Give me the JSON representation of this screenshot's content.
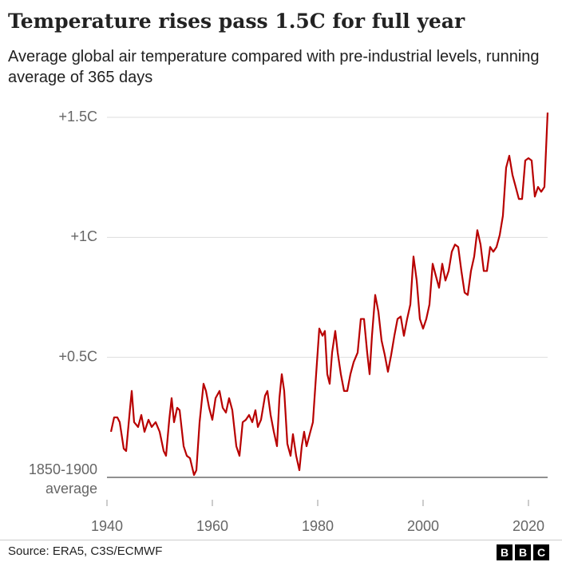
{
  "chart_data": {
    "type": "line",
    "title": "Temperature rises pass 1.5C for full year",
    "subtitle": "Average global air temperature compared with pre-industrial levels, running average of 365 days",
    "source": "Source: ERA5, C3S/ECMWF",
    "logo": [
      "B",
      "B",
      "C"
    ],
    "color": "#b80000",
    "grid": true,
    "xlim": [
      1940,
      2023.64
    ],
    "xticks": [
      1940,
      1960,
      1980,
      2000,
      2020
    ],
    "ylim": [
      0,
      1.5
    ],
    "yticks": [
      {
        "value": 0,
        "label": "1850-1900 average"
      },
      {
        "value": 0.5,
        "label": "+0.5C"
      },
      {
        "value": 1,
        "label": "+1C"
      },
      {
        "value": 1.5,
        "label": "+1.5C"
      }
    ],
    "x": [
      1940.76,
      1941.36,
      1941.97,
      1942.42,
      1943.18,
      1943.64,
      1944.39,
      1944.7,
      1945.15,
      1945.91,
      1946.52,
      1947.12,
      1947.88,
      1948.48,
      1949.24,
      1950.0,
      1950.76,
      1951.21,
      1951.82,
      1952.27,
      1952.73,
      1953.33,
      1953.79,
      1954.55,
      1955.15,
      1955.76,
      1956.52,
      1956.97,
      1957.58,
      1958.33,
      1958.79,
      1959.39,
      1960.0,
      1960.61,
      1961.36,
      1961.97,
      1962.58,
      1963.18,
      1963.79,
      1964.55,
      1965.15,
      1965.76,
      1966.36,
      1966.97,
      1967.58,
      1968.18,
      1968.64,
      1969.24,
      1970.0,
      1970.45,
      1971.06,
      1971.67,
      1972.27,
      1972.73,
      1973.18,
      1973.64,
      1974.24,
      1974.85,
      1975.3,
      1975.91,
      1976.52,
      1976.97,
      1977.42,
      1977.88,
      1978.48,
      1979.09,
      1979.7,
      1980.3,
      1980.91,
      1981.36,
      1981.82,
      1982.27,
      1982.73,
      1983.33,
      1983.79,
      1984.39,
      1985.0,
      1985.61,
      1986.21,
      1986.82,
      1987.58,
      1988.18,
      1988.79,
      1989.39,
      1989.85,
      1990.3,
      1990.91,
      1991.52,
      1992.12,
      1992.73,
      1993.33,
      1993.94,
      1994.55,
      1995.15,
      1995.76,
      1996.36,
      1996.97,
      1997.58,
      1998.18,
      1998.79,
      1999.39,
      2000.0,
      2000.61,
      2001.21,
      2001.82,
      2002.42,
      2003.03,
      2003.64,
      2004.24,
      2004.85,
      2005.45,
      2006.06,
      2006.67,
      2007.27,
      2007.88,
      2008.48,
      2009.09,
      2009.7,
      2010.3,
      2010.91,
      2011.52,
      2012.12,
      2012.73,
      2013.33,
      2013.94,
      2014.55,
      2015.15,
      2015.76,
      2016.36,
      2016.97,
      2017.58,
      2018.18,
      2018.79,
      2019.39,
      2020.0,
      2020.61,
      2021.21,
      2021.82,
      2022.42,
      2023.03,
      2023.64
    ],
    "values": [
      0.19,
      0.25,
      0.25,
      0.23,
      0.12,
      0.11,
      0.29,
      0.36,
      0.23,
      0.21,
      0.26,
      0.19,
      0.24,
      0.21,
      0.23,
      0.19,
      0.11,
      0.09,
      0.24,
      0.33,
      0.23,
      0.29,
      0.28,
      0.13,
      0.09,
      0.08,
      0.01,
      0.03,
      0.23,
      0.39,
      0.36,
      0.29,
      0.24,
      0.33,
      0.36,
      0.29,
      0.27,
      0.33,
      0.28,
      0.13,
      0.09,
      0.23,
      0.24,
      0.26,
      0.23,
      0.28,
      0.21,
      0.24,
      0.34,
      0.36,
      0.26,
      0.19,
      0.13,
      0.33,
      0.43,
      0.36,
      0.14,
      0.09,
      0.18,
      0.09,
      0.03,
      0.13,
      0.19,
      0.13,
      0.18,
      0.23,
      0.43,
      0.62,
      0.59,
      0.61,
      0.43,
      0.39,
      0.52,
      0.61,
      0.52,
      0.43,
      0.36,
      0.36,
      0.43,
      0.48,
      0.52,
      0.66,
      0.66,
      0.52,
      0.43,
      0.59,
      0.76,
      0.69,
      0.57,
      0.51,
      0.44,
      0.51,
      0.59,
      0.66,
      0.67,
      0.59,
      0.66,
      0.72,
      0.92,
      0.82,
      0.66,
      0.62,
      0.66,
      0.72,
      0.89,
      0.84,
      0.79,
      0.89,
      0.82,
      0.86,
      0.94,
      0.97,
      0.96,
      0.86,
      0.77,
      0.76,
      0.86,
      0.92,
      1.03,
      0.97,
      0.86,
      0.86,
      0.96,
      0.94,
      0.96,
      1.01,
      1.09,
      1.29,
      1.34,
      1.26,
      1.21,
      1.16,
      1.16,
      1.32,
      1.33,
      1.32,
      1.17,
      1.21,
      1.19,
      1.21,
      1.52
    ]
  }
}
